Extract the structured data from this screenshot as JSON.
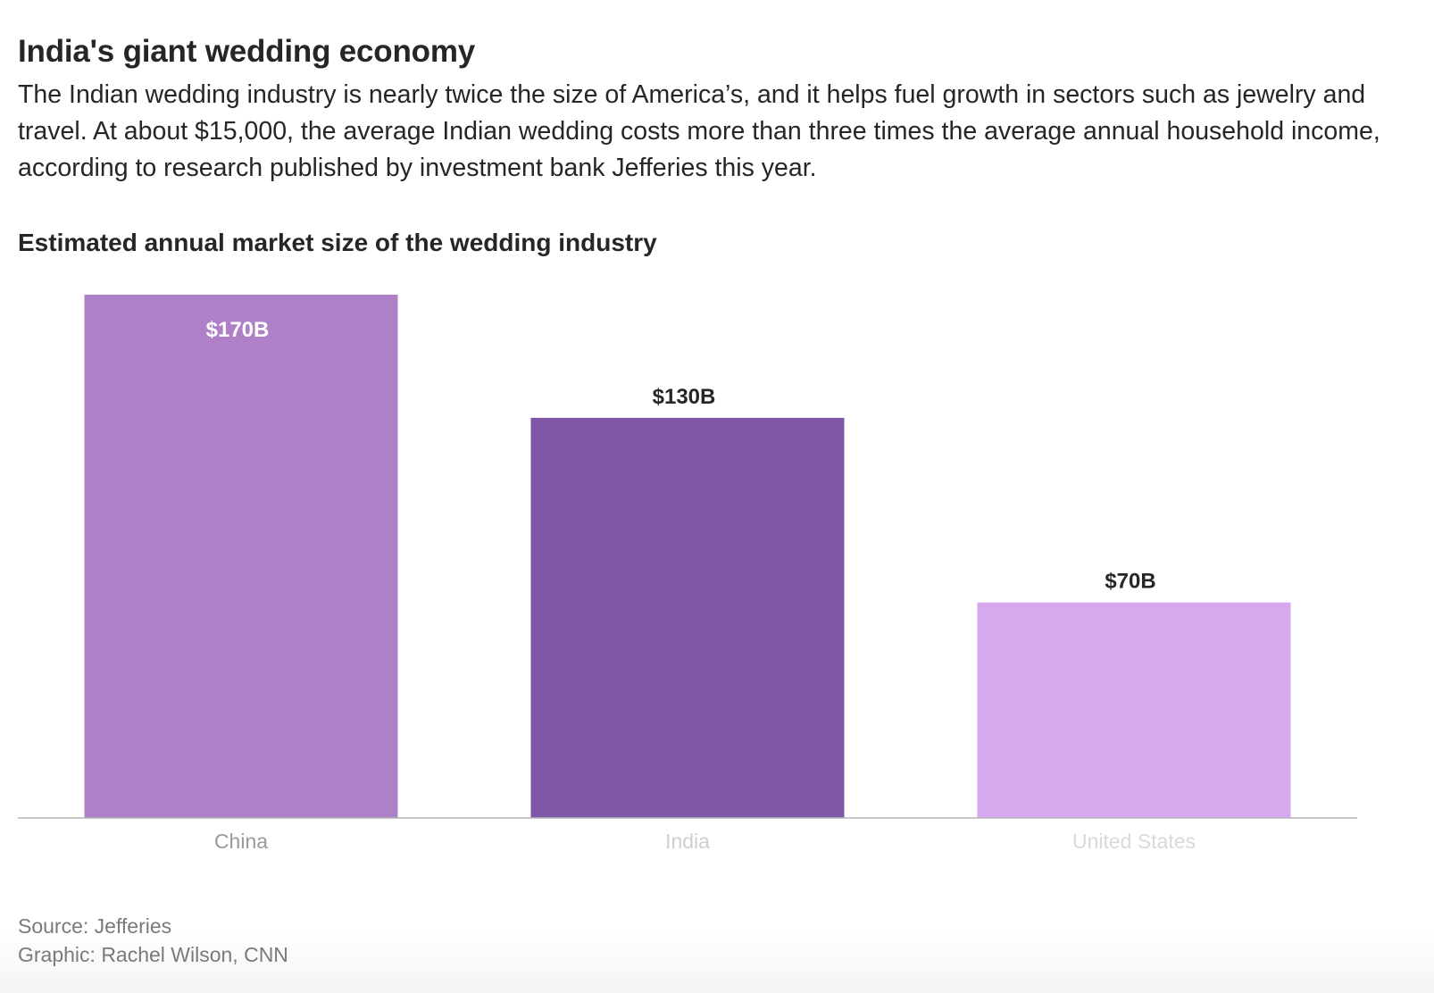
{
  "header": {
    "title": "India's giant wedding economy",
    "subtitle": "The Indian wedding industry is nearly twice the size of America’s, and it helps fuel growth in sectors such as jewelry and travel. At about $15,000, the average Indian wedding costs more than three times the average annual household income, according to research published by investment bank Jefferies this year."
  },
  "chart_data": {
    "type": "bar",
    "title": "Estimated annual market size of the wedding industry",
    "xlabel": "",
    "ylabel": "",
    "categories": [
      "China",
      "India",
      "United States"
    ],
    "values": [
      170,
      130,
      70
    ],
    "data_labels": [
      "$170B",
      "$130B",
      "$70B"
    ],
    "unit": "billion USD",
    "ylim": [
      0,
      170
    ],
    "grid": false,
    "bar_colors": [
      "#ae80c8",
      "#7f56a5",
      "#d6a8ee"
    ],
    "category_label_colors": [
      "#9a9a9a",
      "#cfcfcf",
      "#d9d9d9"
    ],
    "data_label_inside_color": "#ffffff",
    "data_label_outside_color": "#262626",
    "baseline_color": "#b5b5b5"
  },
  "footer": {
    "source": "Source: Jefferies",
    "credit": "Graphic: Rachel Wilson, CNN"
  }
}
